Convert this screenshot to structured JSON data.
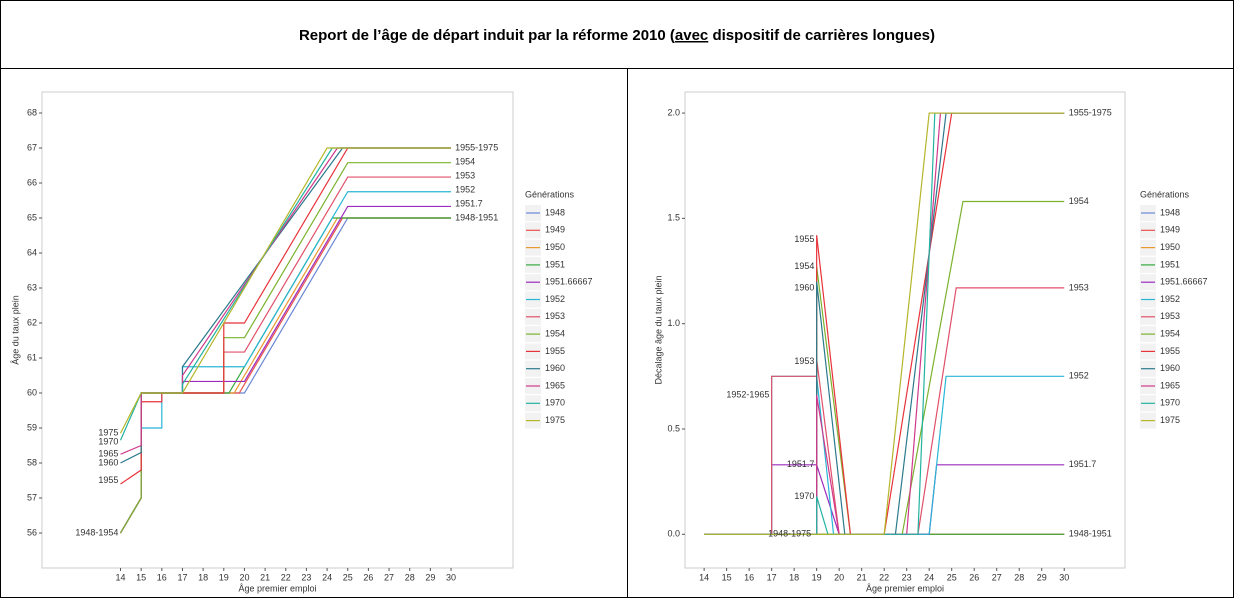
{
  "header": {
    "title_before": "Report de l’âge de départ induit par la réforme 2010 (",
    "title_emph": "avec",
    "title_after": " dispositif de carrières longues)"
  },
  "chart_data": [
    {
      "type": "line",
      "ylabel": "Âge du taux plein",
      "xlabel": "Âge premier emploi",
      "legend_title": "Générations",
      "xlim": [
        10.2,
        33
      ],
      "ylim": [
        55,
        68.6
      ],
      "xticks": [
        14,
        15,
        16,
        17,
        18,
        19,
        20,
        21,
        22,
        23,
        24,
        25,
        26,
        27,
        28,
        29,
        30
      ],
      "yticks": [
        56,
        57,
        58,
        59,
        60,
        61,
        62,
        63,
        64,
        65,
        66,
        67,
        68
      ],
      "series": [
        {
          "name": "1948",
          "color": "#6a87d6",
          "x": [
            14,
            15,
            15,
            20,
            25,
            30
          ],
          "values": [
            56,
            57,
            60,
            60,
            65,
            65
          ]
        },
        {
          "name": "1949",
          "color": "#e8544d",
          "x": [
            14,
            15,
            15,
            19.75,
            24.75,
            30
          ],
          "values": [
            56,
            57,
            60,
            60,
            65,
            65
          ]
        },
        {
          "name": "1950",
          "color": "#e79a2e",
          "x": [
            14,
            15,
            15,
            19.5,
            24.5,
            30
          ],
          "values": [
            56,
            57,
            60,
            60,
            65,
            65
          ]
        },
        {
          "name": "1951",
          "color": "#36a83f",
          "x": [
            14,
            15,
            15,
            19.25,
            24.25,
            30
          ],
          "values": [
            56,
            57,
            60,
            60,
            65,
            65
          ]
        },
        {
          "name": "1951.66667",
          "color": "#9c2bbd",
          "x": [
            14,
            15,
            15,
            17,
            17,
            20,
            25,
            30
          ],
          "values": [
            56,
            57,
            60,
            60,
            60.33,
            60.33,
            65.33,
            65.33
          ]
        },
        {
          "name": "1952",
          "color": "#29b5d6",
          "x": [
            14,
            15,
            15,
            15,
            16,
            16,
            17,
            17,
            20,
            25,
            30
          ],
          "values": [
            56,
            57,
            59,
            59,
            59,
            60,
            60,
            60.75,
            60.75,
            65.75,
            65.75
          ]
        },
        {
          "name": "1953",
          "color": "#e0506a",
          "x": [
            14,
            15,
            15,
            19,
            19,
            20,
            25,
            30
          ],
          "values": [
            56,
            57,
            60,
            60,
            61.17,
            61.17,
            66.17,
            66.17
          ]
        },
        {
          "name": "1954",
          "color": "#7ab22e",
          "x": [
            14,
            15,
            15,
            19,
            19,
            20,
            25,
            30
          ],
          "values": [
            56,
            57,
            60,
            60,
            61.58,
            61.58,
            66.58,
            66.58
          ]
        },
        {
          "name": "1955",
          "color": "#e8333a",
          "x": [
            14,
            15,
            15,
            16,
            16,
            19,
            19,
            20,
            25,
            30
          ],
          "values": [
            57.4,
            57.8,
            59.75,
            59.75,
            60,
            60,
            62,
            62,
            67,
            67
          ]
        },
        {
          "name": "1960",
          "color": "#2b7a8c",
          "x": [
            14,
            15,
            15,
            17,
            17,
            24.75,
            30
          ],
          "values": [
            58,
            58.3,
            60,
            60,
            60.75,
            67,
            67
          ]
        },
        {
          "name": "1965",
          "color": "#d0388c",
          "x": [
            14,
            15,
            15,
            17,
            17,
            24.5,
            30
          ],
          "values": [
            58.25,
            58.5,
            60,
            60,
            60.5,
            67,
            67
          ]
        },
        {
          "name": "1970",
          "color": "#22b2a0",
          "x": [
            14,
            15,
            17,
            17,
            24.25,
            30
          ],
          "values": [
            58.65,
            60,
            60,
            60.25,
            67,
            67
          ]
        },
        {
          "name": "1975",
          "color": "#b5b52a",
          "x": [
            14,
            15,
            17,
            24,
            30
          ],
          "values": [
            58.85,
            60,
            60,
            67,
            67
          ]
        }
      ],
      "annotations": [
        {
          "text": "1955-1975",
          "x": 30.2,
          "y": 67,
          "anchor": "start"
        },
        {
          "text": "1954",
          "x": 30.2,
          "y": 66.6,
          "anchor": "start"
        },
        {
          "text": "1953",
          "x": 30.2,
          "y": 66.2,
          "anchor": "start"
        },
        {
          "text": "1952",
          "x": 30.2,
          "y": 65.8,
          "anchor": "start"
        },
        {
          "text": "1951.7",
          "x": 30.2,
          "y": 65.4,
          "anchor": "start"
        },
        {
          "text": "1948-1951",
          "x": 30.2,
          "y": 65,
          "anchor": "start"
        },
        {
          "text": "1975",
          "x": 13.9,
          "y": 58.85,
          "anchor": "end"
        },
        {
          "text": "1970",
          "x": 13.9,
          "y": 58.6,
          "anchor": "end"
        },
        {
          "text": "1965",
          "x": 13.9,
          "y": 58.25,
          "anchor": "end"
        },
        {
          "text": "1960",
          "x": 13.9,
          "y": 58.0,
          "anchor": "end"
        },
        {
          "text": "1955",
          "x": 13.9,
          "y": 57.5,
          "anchor": "end"
        },
        {
          "text": "1948-1954",
          "x": 13.9,
          "y": 56,
          "anchor": "end"
        }
      ]
    },
    {
      "type": "line",
      "ylabel": "Décalage âge du taux plein",
      "xlabel": "Âge premier emploi",
      "legend_title": "Générations",
      "xlim": [
        13.15,
        32.7
      ],
      "ylim": [
        -0.16,
        2.1
      ],
      "xticks": [
        14,
        15,
        16,
        17,
        18,
        19,
        20,
        21,
        22,
        23,
        24,
        25,
        26,
        27,
        28,
        29,
        30
      ],
      "yticks": [
        {
          "value": 0,
          "label": "0.0"
        },
        {
          "value": 0.5,
          "label": "0.5"
        },
        {
          "value": 1,
          "label": "1.0"
        },
        {
          "value": 1.5,
          "label": "1.5"
        },
        {
          "value": 2,
          "label": "2.0"
        }
      ],
      "series": [
        {
          "name": "1948",
          "color": "#6a87d6",
          "x": [
            14,
            30
          ],
          "values": [
            0,
            0
          ]
        },
        {
          "name": "1949",
          "color": "#e8544d",
          "x": [
            14,
            30
          ],
          "values": [
            0,
            0
          ]
        },
        {
          "name": "1950",
          "color": "#e79a2e",
          "x": [
            14,
            30
          ],
          "values": [
            0,
            0
          ]
        },
        {
          "name": "1951",
          "color": "#36a83f",
          "x": [
            14,
            30
          ],
          "values": [
            0,
            0
          ]
        },
        {
          "name": "1951.66667",
          "color": "#9c2bbd",
          "x": [
            14,
            17,
            17,
            19,
            20,
            24,
            24.33,
            30
          ],
          "values": [
            0,
            0,
            0.33,
            0.33,
            0,
            0,
            0.33,
            0.33
          ]
        },
        {
          "name": "1952",
          "color": "#29b5d6",
          "x": [
            14,
            17,
            17,
            19,
            19.75,
            24,
            24.75,
            30
          ],
          "values": [
            0,
            0,
            0.75,
            0.75,
            0,
            0,
            0.75,
            0.75
          ]
        },
        {
          "name": "1953",
          "color": "#e0506a",
          "x": [
            14,
            17,
            17,
            19,
            19,
            20,
            23.5,
            25.2,
            30
          ],
          "values": [
            0,
            0,
            0.75,
            0.75,
            0.83,
            0,
            0,
            1.17,
            1.17
          ]
        },
        {
          "name": "1954",
          "color": "#7ab22e",
          "x": [
            14,
            19,
            19,
            20.5,
            22.8,
            25.5,
            30
          ],
          "values": [
            0,
            0,
            1.27,
            0,
            0,
            1.58,
            1.58
          ]
        },
        {
          "name": "1955",
          "color": "#e8333a",
          "x": [
            14,
            19,
            19,
            20.5,
            22,
            25,
            30
          ],
          "values": [
            0,
            0,
            1.42,
            0,
            0,
            2,
            2
          ]
        },
        {
          "name": "1960",
          "color": "#2b7a8c",
          "x": [
            14,
            19,
            19,
            20.25,
            22.5,
            24.75,
            30
          ],
          "values": [
            0,
            0,
            1.2,
            0,
            0,
            2,
            2
          ]
        },
        {
          "name": "1965",
          "color": "#d0388c",
          "x": [
            14,
            19,
            19,
            20,
            23,
            24.5,
            30
          ],
          "values": [
            0,
            0,
            0.66,
            0,
            0,
            2,
            2
          ]
        },
        {
          "name": "1970",
          "color": "#22b2a0",
          "x": [
            14,
            19,
            19,
            19.5,
            23.5,
            24.25,
            30
          ],
          "values": [
            0,
            0,
            0.18,
            0,
            0,
            2,
            2
          ]
        },
        {
          "name": "1975",
          "color": "#b5b52a",
          "x": [
            14,
            22,
            24,
            30
          ],
          "values": [
            0,
            0,
            2,
            2
          ]
        }
      ],
      "annotations": [
        {
          "text": "1955-1975",
          "x": 30.2,
          "y": 2,
          "anchor": "start"
        },
        {
          "text": "1954",
          "x": 30.2,
          "y": 1.58,
          "anchor": "start"
        },
        {
          "text": "1953",
          "x": 30.2,
          "y": 1.17,
          "anchor": "start"
        },
        {
          "text": "1952",
          "x": 30.2,
          "y": 0.75,
          "anchor": "start"
        },
        {
          "text": "1951.7",
          "x": 30.2,
          "y": 0.33,
          "anchor": "start"
        },
        {
          "text": "1948-1951",
          "x": 30.2,
          "y": 0,
          "anchor": "start"
        },
        {
          "text": "1955",
          "x": 18.9,
          "y": 1.4,
          "anchor": "end"
        },
        {
          "text": "1954",
          "x": 18.9,
          "y": 1.27,
          "anchor": "end"
        },
        {
          "text": "1960",
          "x": 18.9,
          "y": 1.17,
          "anchor": "end"
        },
        {
          "text": "1953",
          "x": 18.9,
          "y": 0.82,
          "anchor": "end"
        },
        {
          "text": "1952-1965",
          "x": 16.9,
          "y": 0.66,
          "anchor": "end"
        },
        {
          "text": "1951.7",
          "x": 18.9,
          "y": 0.33,
          "anchor": "end"
        },
        {
          "text": "1970",
          "x": 18.9,
          "y": 0.18,
          "anchor": "end"
        },
        {
          "text": "1948-1975",
          "x": 17.8,
          "y": 0,
          "anchor": "middle"
        }
      ]
    }
  ]
}
